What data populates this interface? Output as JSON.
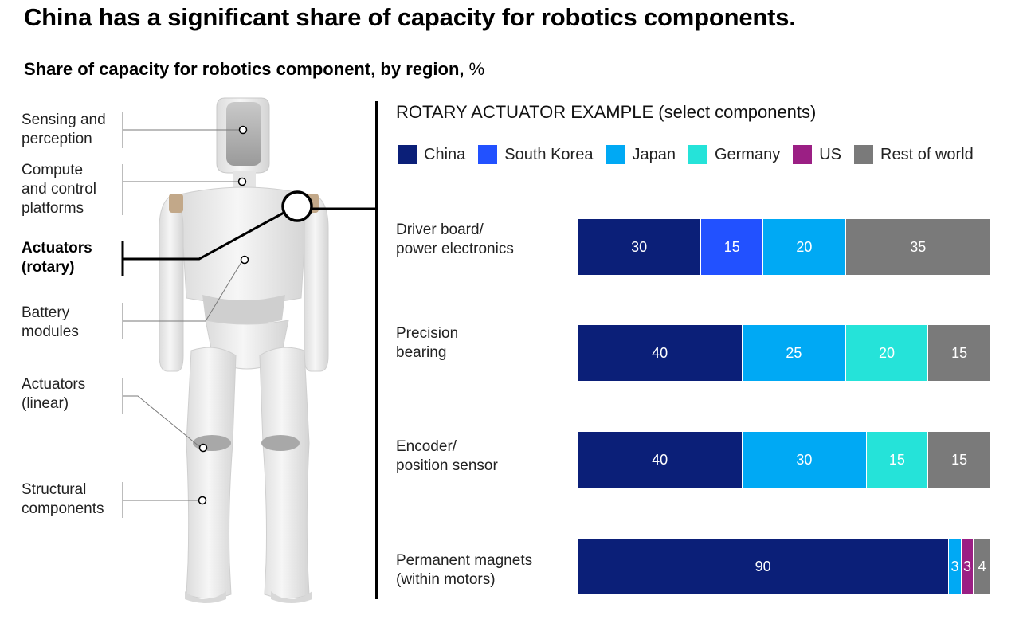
{
  "title": "China has a significant share of capacity for robotics components.",
  "subtitle": {
    "main": "Share of capacity for robotics component, by region,",
    "unit": "%"
  },
  "components": [
    {
      "label": "Sensing and\nperception",
      "active": false
    },
    {
      "label": "Compute\nand control\nplatforms",
      "active": false
    },
    {
      "label": "Actuators\n(rotary)",
      "active": true
    },
    {
      "label": "Battery\nmodules",
      "active": false
    },
    {
      "label": "Actuators\n(linear)",
      "active": false
    },
    {
      "label": "Structural\ncomponents",
      "active": false
    }
  ],
  "chart_data": {
    "type": "bar",
    "orientation": "horizontal",
    "stacked": true,
    "title": "ROTARY ACTUATOR EXAMPLE (select components)",
    "categories": [
      "Driver board/\npower electronics",
      "Precision\nbearing",
      "Encoder/\nposition sensor",
      "Permanent magnets\n(within motors)"
    ],
    "series": [
      {
        "name": "China",
        "color": "#0b1f78",
        "values": [
          30,
          40,
          40,
          90
        ]
      },
      {
        "name": "South Korea",
        "color": "#2251ff",
        "values": [
          15,
          0,
          0,
          0
        ]
      },
      {
        "name": "Japan",
        "color": "#00a9f4",
        "values": [
          20,
          25,
          30,
          3
        ]
      },
      {
        "name": "Germany",
        "color": "#25e3d9",
        "values": [
          0,
          20,
          15,
          0
        ]
      },
      {
        "name": "US",
        "color": "#9b1f84",
        "values": [
          0,
          0,
          0,
          3
        ]
      },
      {
        "name": "Rest of world",
        "color": "#7a7a7a",
        "values": [
          35,
          15,
          15,
          4
        ]
      }
    ],
    "xlim": [
      0,
      100
    ],
    "legend_position": "top",
    "grid": false
  }
}
